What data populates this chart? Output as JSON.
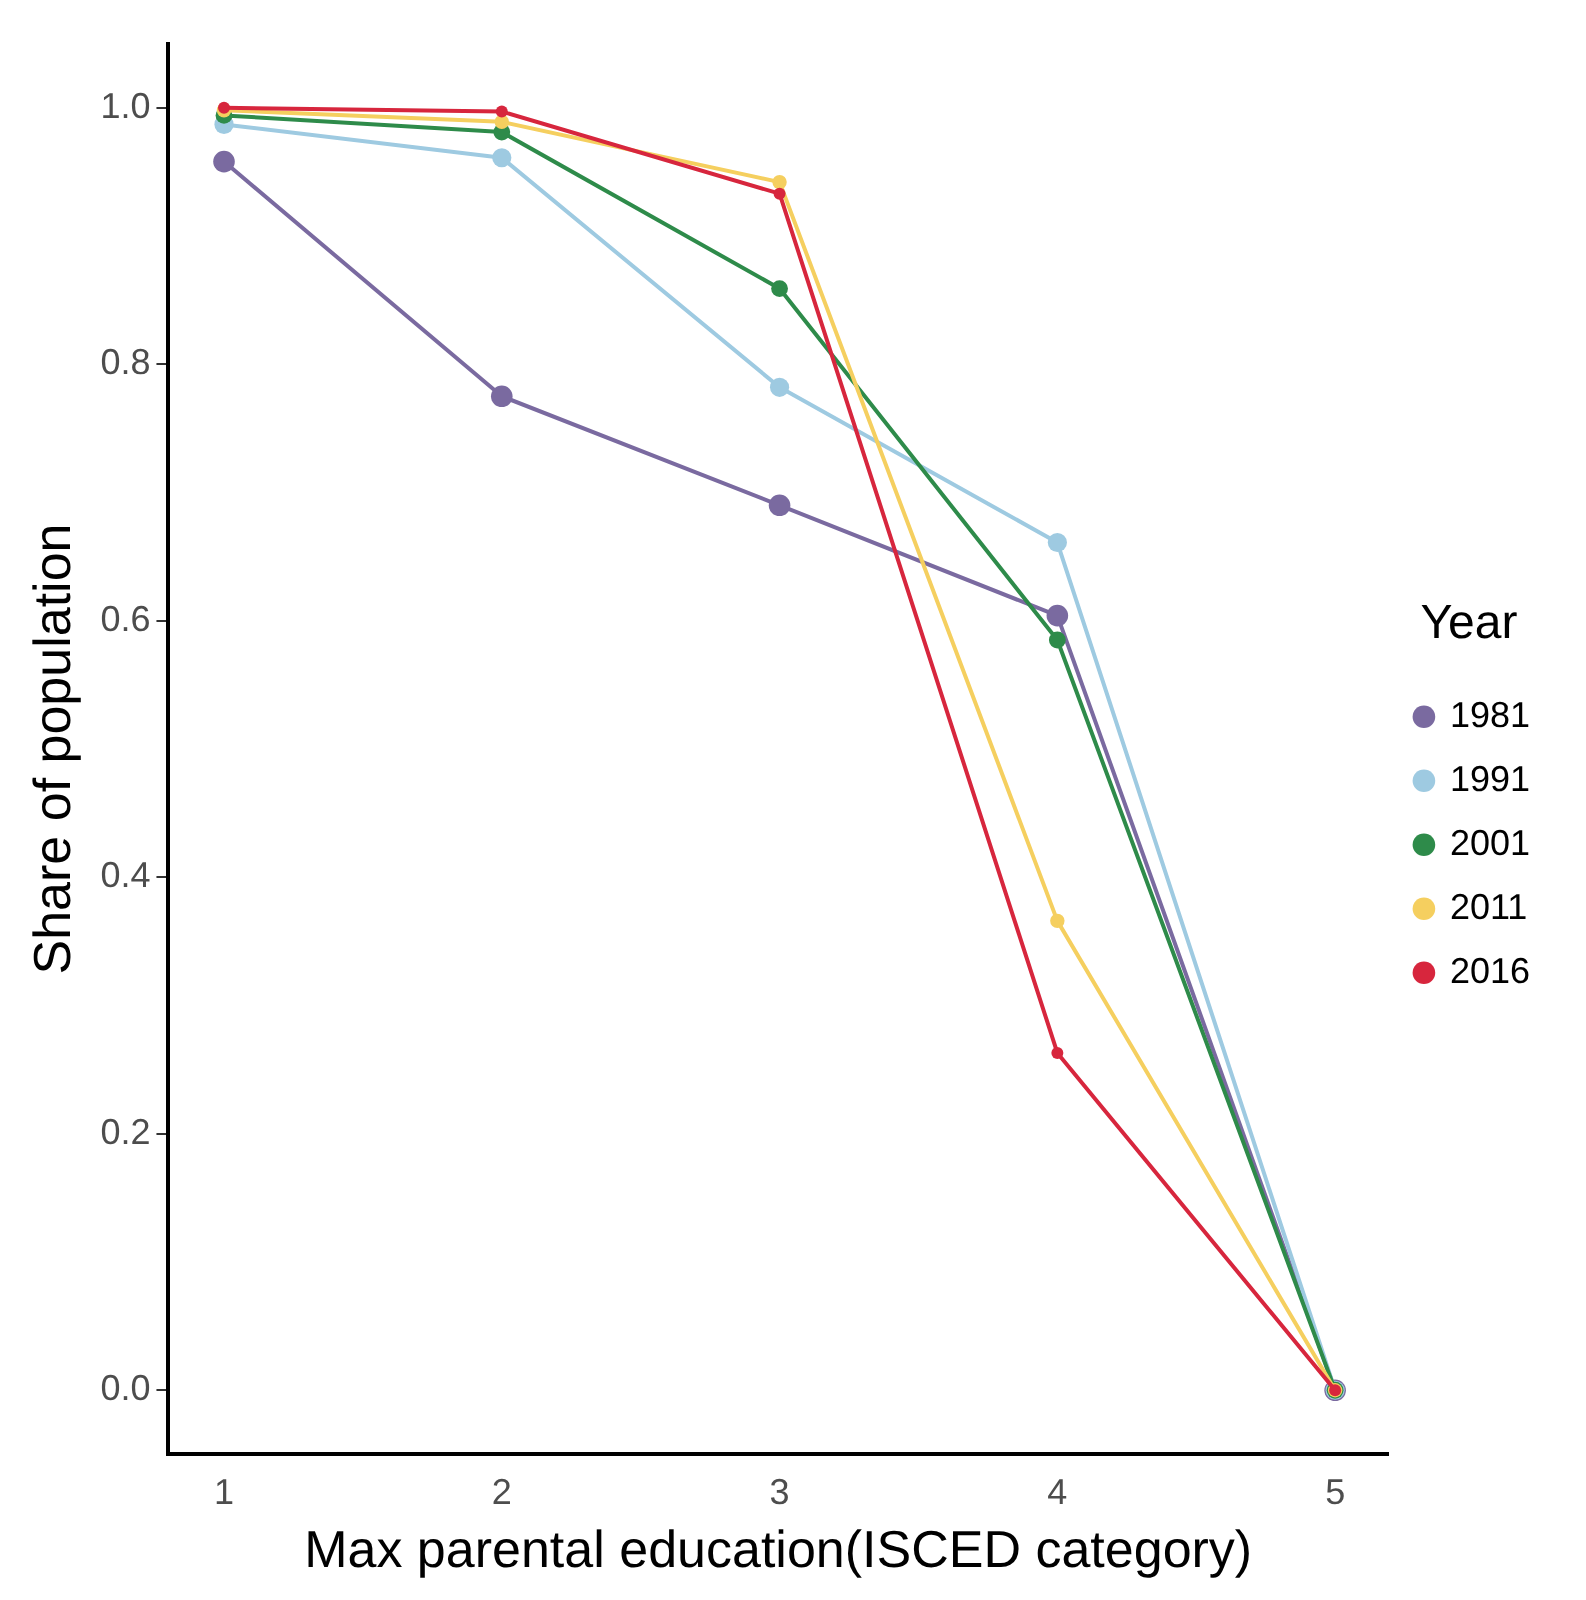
{
  "chart_data": {
    "type": "line",
    "xlabel": "Max parental education(ISCED category)",
    "ylabel": "Share of population",
    "legend_title": "Year",
    "legend": "right",
    "grid": false,
    "marker": "circle",
    "line_style": "solid",
    "x": [
      1,
      2,
      3,
      4,
      5
    ],
    "xlim": [
      0.8,
      5.19
    ],
    "xticks": [
      1,
      2,
      3,
      4,
      5
    ],
    "ylim": [
      -0.05,
      1.05
    ],
    "yticks": [
      {
        "value": 0,
        "label": "0.0"
      },
      0.2,
      0.4,
      0.6,
      0.8,
      {
        "value": 1,
        "label": "1.0"
      }
    ],
    "series": [
      {
        "name": "1981",
        "color": "#7a6aa0",
        "values": [
          0.958,
          0.775,
          0.69,
          0.604,
          0
        ]
      },
      {
        "name": "1991",
        "color": "#9ecae1",
        "values": [
          0.987,
          0.961,
          0.782,
          0.661,
          0
        ]
      },
      {
        "name": "2001",
        "color": "#2e8b4a",
        "values": [
          0.994,
          0.981,
          0.859,
          0.585,
          0
        ]
      },
      {
        "name": "2011",
        "color": "#f5cf5f",
        "values": [
          0.998,
          0.989,
          0.942,
          0.366,
          0
        ]
      },
      {
        "name": "2016",
        "color": "#d7263d",
        "values": [
          1,
          0.997,
          0.933,
          0.263,
          0
        ]
      }
    ]
  }
}
